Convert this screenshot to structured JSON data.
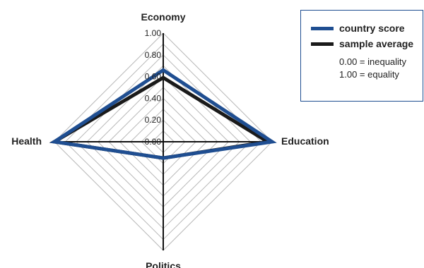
{
  "chart_data": {
    "type": "radar",
    "axes": [
      "Economy",
      "Education",
      "Politics",
      "Health"
    ],
    "ticks": [
      "0.00",
      "0.20",
      "0.40",
      "0.60",
      "0.80",
      "1.00"
    ],
    "range": [
      0,
      1
    ],
    "series": [
      {
        "name": "country score",
        "color": "#1f4e91",
        "values": [
          0.66,
          1.0,
          0.15,
          1.0
        ]
      },
      {
        "name": "sample average",
        "color": "#1a1a1a",
        "values": [
          0.59,
          0.96,
          0.15,
          1.0
        ]
      }
    ],
    "notes": [
      "0.00 = inequality",
      "1.00 = equality"
    ],
    "grid": true,
    "legend_position": "top-right"
  }
}
